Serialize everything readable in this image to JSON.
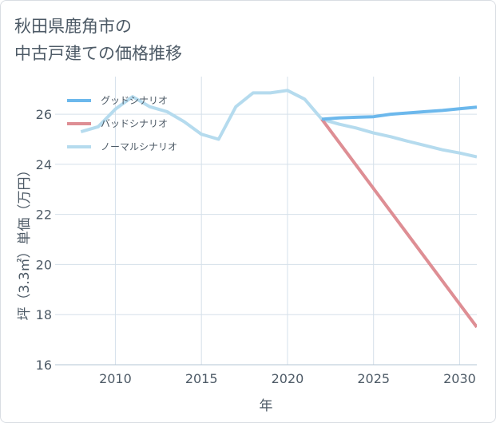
{
  "title_line1": "秋田県鹿角市の",
  "title_line2": "中古戸建ての価格推移",
  "chart_data": {
    "type": "line",
    "xlabel": "年",
    "ylabel": "坪（3.3㎡）単価（万円）",
    "xlim": [
      2006.5,
      2031
    ],
    "ylim": [
      16,
      27.5
    ],
    "xticks": [
      2010,
      2015,
      2020,
      2025,
      2030
    ],
    "yticks": [
      16,
      18,
      20,
      22,
      24,
      26
    ],
    "grid": true,
    "legend_position": "top-left",
    "series": [
      {
        "name": "グッドシナリオ",
        "color": "#6cb8ec",
        "x": [
          2022,
          2023,
          2024,
          2025,
          2026,
          2027,
          2028,
          2029,
          2030,
          2031
        ],
        "y": [
          25.8,
          25.85,
          25.88,
          25.9,
          26.0,
          26.05,
          26.1,
          26.15,
          26.22,
          26.28
        ]
      },
      {
        "name": "バッドシナリオ",
        "color": "#de8e94",
        "x": [
          2022,
          2031
        ],
        "y": [
          25.8,
          17.5
        ]
      },
      {
        "name": "ノーマルシナリオ",
        "color": "#b5dbee",
        "x": [
          2008,
          2009,
          2010,
          2011,
          2012,
          2013,
          2014,
          2015,
          2016,
          2017,
          2018,
          2019,
          2020,
          2021,
          2022,
          2023,
          2024,
          2025,
          2026,
          2027,
          2028,
          2029,
          2030,
          2031
        ],
        "y": [
          25.3,
          25.5,
          26.2,
          26.7,
          26.3,
          26.1,
          25.7,
          25.2,
          25.0,
          26.3,
          26.85,
          26.85,
          26.95,
          26.6,
          25.8,
          25.6,
          25.45,
          25.25,
          25.1,
          24.92,
          24.75,
          24.58,
          24.45,
          24.3
        ]
      }
    ]
  }
}
